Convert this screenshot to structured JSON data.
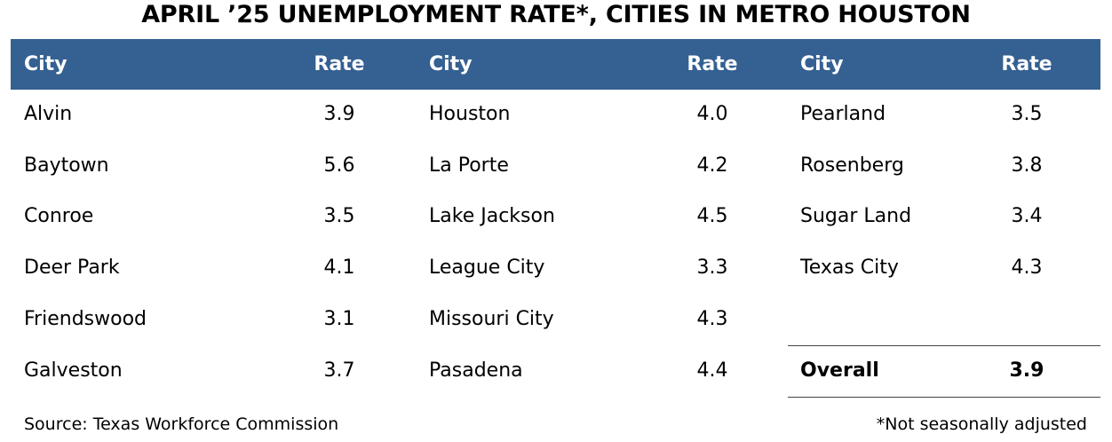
{
  "chart_data": {
    "type": "table",
    "title": "APRIL ’25 UNEMPLOYMENT RATE*, CITIES IN METRO HOUSTON",
    "columns": [
      {
        "city_header": "City",
        "rate_header": "Rate",
        "rows": [
          {
            "city": "Alvin",
            "rate": "3.9"
          },
          {
            "city": "Baytown",
            "rate": "5.6"
          },
          {
            "city": "Conroe",
            "rate": "3.5"
          },
          {
            "city": "Deer Park",
            "rate": "4.1"
          },
          {
            "city": "Friendswood",
            "rate": "3.1"
          },
          {
            "city": "Galveston",
            "rate": "3.7"
          }
        ]
      },
      {
        "city_header": "City",
        "rate_header": "Rate",
        "rows": [
          {
            "city": "Houston",
            "rate": "4.0"
          },
          {
            "city": "La Porte",
            "rate": "4.2"
          },
          {
            "city": "Lake Jackson",
            "rate": "4.5"
          },
          {
            "city": "League City",
            "rate": "3.3"
          },
          {
            "city": "Missouri City",
            "rate": "4.3"
          },
          {
            "city": "Pasadena",
            "rate": "4.4"
          }
        ]
      },
      {
        "city_header": "City",
        "rate_header": "Rate",
        "rows": [
          {
            "city": "Pearland",
            "rate": "3.5"
          },
          {
            "city": "Rosenberg",
            "rate": "3.8"
          },
          {
            "city": "Sugar Land",
            "rate": "3.4"
          },
          {
            "city": "Texas City",
            "rate": "4.3"
          }
        ]
      }
    ],
    "overall": {
      "label": "Overall",
      "rate": "3.9"
    },
    "source": "Source: Texas Workforce Commission",
    "footnote": "*Not seasonally adjusted"
  },
  "colors": {
    "header_background": "#356092",
    "header_text": "#ffffff"
  }
}
